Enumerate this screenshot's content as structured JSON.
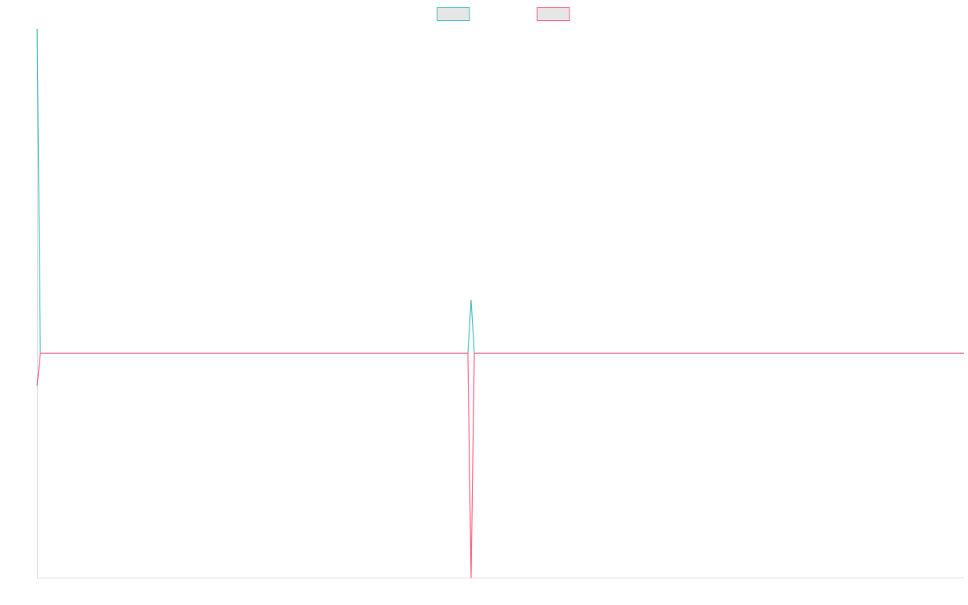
{
  "chart_data": {
    "type": "line",
    "x": [
      0,
      4,
      534,
      538,
      542,
      1149
    ],
    "xlim": [
      0,
      1149
    ],
    "ylim": [
      -1,
      1.446
    ],
    "grid": false,
    "legend": "top",
    "series": [
      {
        "color": "#4bc0c0",
        "values": [
          1.446,
          0,
          0,
          0.237,
          0,
          0
        ]
      },
      {
        "color": "#ff6384",
        "values": [
          -0.144,
          0,
          0,
          -1,
          0,
          0
        ]
      }
    ]
  }
}
